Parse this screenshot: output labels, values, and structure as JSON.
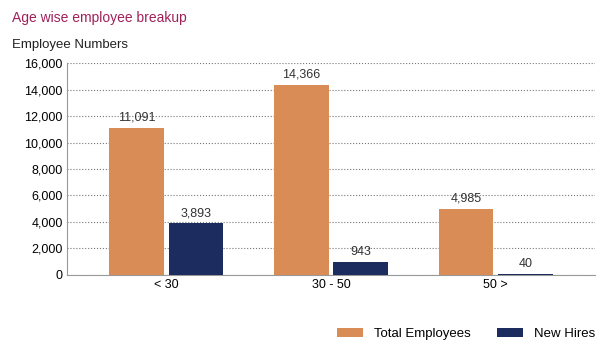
{
  "chart_data": {
    "type": "bar",
    "title": "Age wise employee breakup",
    "y_label": "Employee Numbers",
    "categories": [
      "< 30",
      "30 - 50",
      "50 >"
    ],
    "series": [
      {
        "name": "Total Employees",
        "color": "#d98c55",
        "values": [
          11091,
          14366,
          4985
        ],
        "value_labels": [
          "11,091",
          "14,366",
          "4,985"
        ]
      },
      {
        "name": "New Hires",
        "color": "#1c2c5e",
        "values": [
          3893,
          943,
          40
        ],
        "value_labels": [
          "3,893",
          "943",
          "40"
        ]
      }
    ],
    "ylim": [
      0,
      16000
    ],
    "yticks": [
      0,
      {
        "value": 2000,
        "label": "2,000"
      },
      {
        "value": 4000,
        "label": "4,000"
      },
      {
        "value": 6000,
        "label": "6,000"
      },
      {
        "value": 8000,
        "label": "8,000"
      },
      {
        "value": 10000,
        "label": "10,000"
      },
      {
        "value": 12000,
        "label": "12,000"
      },
      {
        "value": 14000,
        "label": "14,000"
      },
      {
        "value": 16000,
        "label": "16,000"
      }
    ],
    "grid": true,
    "data_labels": true,
    "legend": "lower right"
  }
}
